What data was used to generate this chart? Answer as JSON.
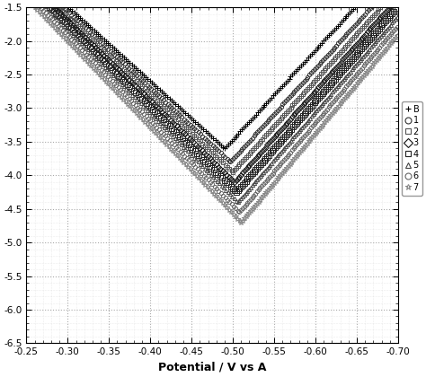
{
  "xlabel": "Potential / V vs A",
  "xlim": [
    -0.25,
    -0.7
  ],
  "ylim": [
    -6.5,
    -1.5
  ],
  "xticks": [
    -0.25,
    -0.3,
    -0.35,
    -0.4,
    -0.45,
    -0.5,
    -0.55,
    -0.6,
    -0.65,
    -0.7
  ],
  "yticks": [
    -6.5,
    -6.0,
    -5.5,
    -5.0,
    -4.5,
    -4.0,
    -3.5,
    -3.0,
    -2.5,
    -2.0,
    -1.5
  ],
  "background_color": "#ffffff",
  "curves": [
    {
      "ecorr": -0.49,
      "icorr": -3.6,
      "ba": 0.09,
      "bc": 0.075,
      "marker": "+",
      "color": "#000000",
      "label": "B",
      "ms": 4
    },
    {
      "ecorr": -0.497,
      "icorr": -3.8,
      "ba": 0.088,
      "bc": 0.074,
      "marker": "o",
      "color": "#333333",
      "label": "1",
      "ms": 3
    },
    {
      "ecorr": -0.5,
      "icorr": -3.95,
      "ba": 0.086,
      "bc": 0.073,
      "marker": "s",
      "color": "#555555",
      "label": "2",
      "ms": 3
    },
    {
      "ecorr": -0.502,
      "icorr": -4.1,
      "ba": 0.084,
      "bc": 0.072,
      "marker": "D",
      "color": "#111111",
      "label": "3",
      "ms": 3
    },
    {
      "ecorr": -0.504,
      "icorr": -4.25,
      "ba": 0.082,
      "bc": 0.071,
      "marker": "s",
      "color": "#222222",
      "label": "4",
      "ms": 4
    },
    {
      "ecorr": -0.506,
      "icorr": -4.4,
      "ba": 0.08,
      "bc": 0.07,
      "marker": "^",
      "color": "#444444",
      "label": "5",
      "ms": 3
    },
    {
      "ecorr": -0.508,
      "icorr": -4.55,
      "ba": 0.079,
      "bc": 0.069,
      "marker": "o",
      "color": "#666666",
      "label": "6",
      "ms": 3
    },
    {
      "ecorr": -0.51,
      "icorr": -4.7,
      "ba": 0.078,
      "bc": 0.068,
      "marker": "*",
      "color": "#888888",
      "label": "7",
      "ms": 4
    }
  ],
  "legend_labels": [
    "B",
    "1",
    "2",
    "3",
    "4",
    "5",
    "6",
    "7"
  ],
  "legend_markers": [
    "+",
    "o",
    "s",
    "D",
    "s",
    "^",
    "o",
    "*"
  ],
  "legend_colors": [
    "#000000",
    "#333333",
    "#555555",
    "#111111",
    "#222222",
    "#444444",
    "#666666",
    "#888888"
  ]
}
